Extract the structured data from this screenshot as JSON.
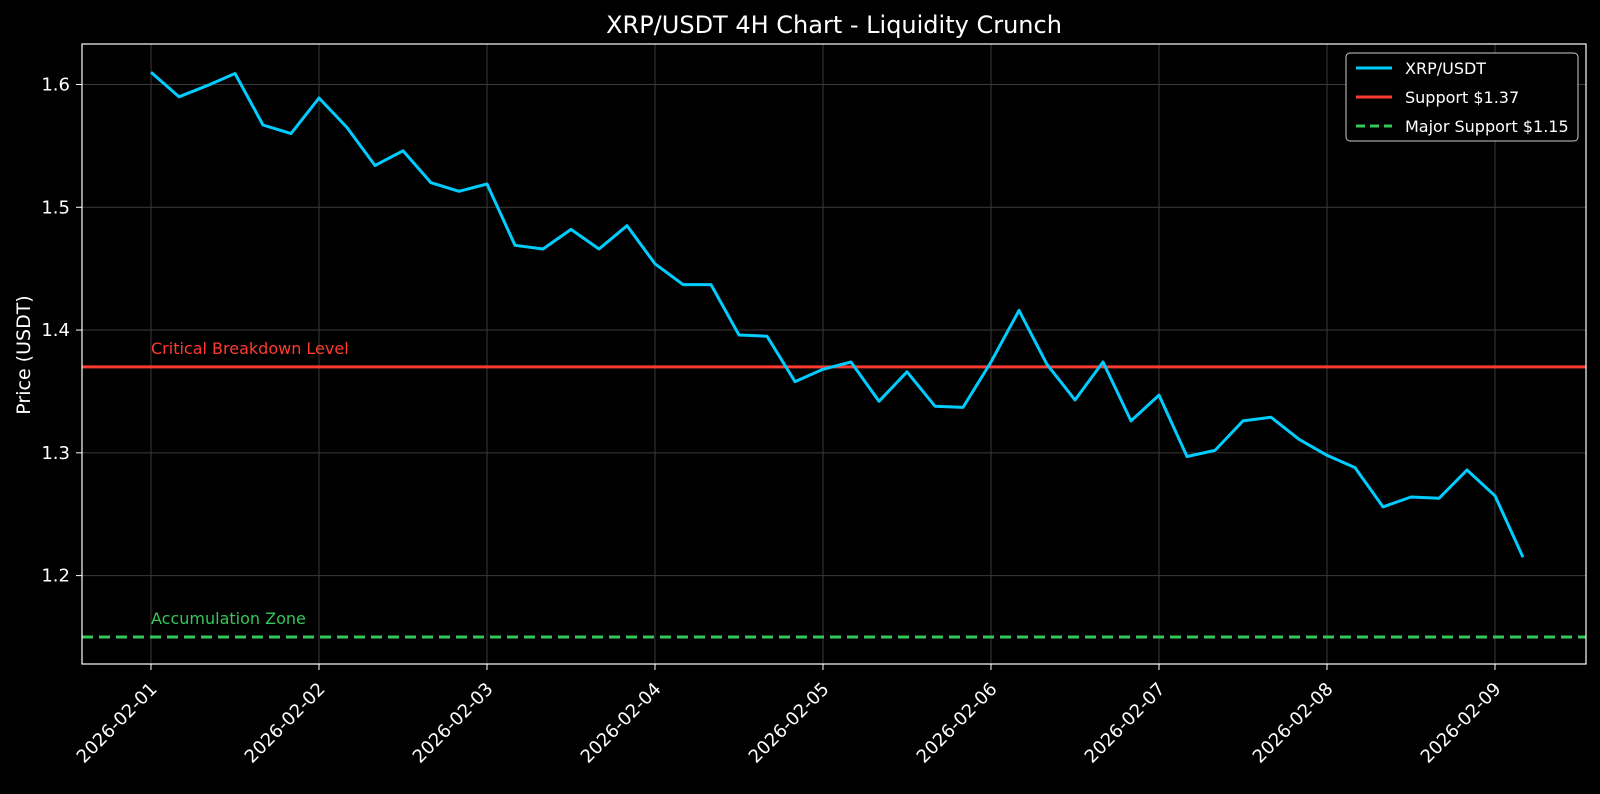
{
  "chart_data": {
    "type": "line",
    "title": "XRP/USDT 4H Chart - Liquidity Crunch",
    "xlabel": "",
    "ylabel": "Price (USDT)",
    "x_tick_labels": [
      "2026-02-01",
      "2026-02-02",
      "2026-02-03",
      "2026-02-04",
      "2026-02-05",
      "2026-02-06",
      "2026-02-07",
      "2026-02-08",
      "2026-02-09"
    ],
    "y_tick_labels": [
      "1.2",
      "1.3",
      "1.4",
      "1.5",
      "1.6"
    ],
    "ylim": [
      1.128,
      1.633
    ],
    "grid": true,
    "legend_position": "top-right",
    "colors": {
      "price": "#00cdff",
      "support": "#ff3b30",
      "major_support": "#34c759",
      "grid": "#3a3a3a"
    },
    "series": [
      {
        "name": "XRP/USDT",
        "x": [
          "2026-02-01 00:00",
          "2026-02-01 04:00",
          "2026-02-01 08:00",
          "2026-02-01 12:00",
          "2026-02-01 16:00",
          "2026-02-01 20:00",
          "2026-02-02 00:00",
          "2026-02-02 04:00",
          "2026-02-02 08:00",
          "2026-02-02 12:00",
          "2026-02-02 16:00",
          "2026-02-02 20:00",
          "2026-02-03 00:00",
          "2026-02-03 04:00",
          "2026-02-03 08:00",
          "2026-02-03 12:00",
          "2026-02-03 16:00",
          "2026-02-03 20:00",
          "2026-02-04 00:00",
          "2026-02-04 04:00",
          "2026-02-04 08:00",
          "2026-02-04 12:00",
          "2026-02-04 16:00",
          "2026-02-04 20:00",
          "2026-02-05 00:00",
          "2026-02-05 04:00",
          "2026-02-05 08:00",
          "2026-02-05 12:00",
          "2026-02-05 16:00",
          "2026-02-05 20:00",
          "2026-02-06 00:00",
          "2026-02-06 04:00",
          "2026-02-06 08:00",
          "2026-02-06 12:00",
          "2026-02-06 16:00",
          "2026-02-06 20:00",
          "2026-02-07 00:00",
          "2026-02-07 04:00",
          "2026-02-07 08:00",
          "2026-02-07 12:00",
          "2026-02-07 16:00",
          "2026-02-07 20:00",
          "2026-02-08 00:00",
          "2026-02-08 04:00",
          "2026-02-08 08:00",
          "2026-02-08 12:00",
          "2026-02-08 16:00",
          "2026-02-08 20:00",
          "2026-02-09 00:00",
          "2026-02-09 04:00"
        ],
        "values": [
          1.61,
          1.59,
          1.599,
          1.609,
          1.567,
          1.56,
          1.589,
          1.565,
          1.534,
          1.546,
          1.52,
          1.513,
          1.519,
          1.469,
          1.466,
          1.482,
          1.466,
          1.485,
          1.454,
          1.437,
          1.437,
          1.396,
          1.395,
          1.358,
          1.368,
          1.374,
          1.342,
          1.366,
          1.338,
          1.337,
          1.374,
          1.416,
          1.372,
          1.343,
          1.374,
          1.326,
          1.347,
          1.297,
          1.302,
          1.326,
          1.329,
          1.311,
          1.298,
          1.288,
          1.256,
          1.264,
          1.263,
          1.286,
          1.265,
          1.215
        ]
      },
      {
        "name": "Support $1.37",
        "constant": 1.37
      },
      {
        "name": "Major Support $1.15",
        "constant": 1.15
      }
    ],
    "annotations": [
      {
        "text": "Critical Breakdown Level",
        "x": "2026-02-01 00:00",
        "y": 1.37
      },
      {
        "text": "Accumulation Zone",
        "x": "2026-02-01 00:00",
        "y": 1.15
      }
    ]
  }
}
